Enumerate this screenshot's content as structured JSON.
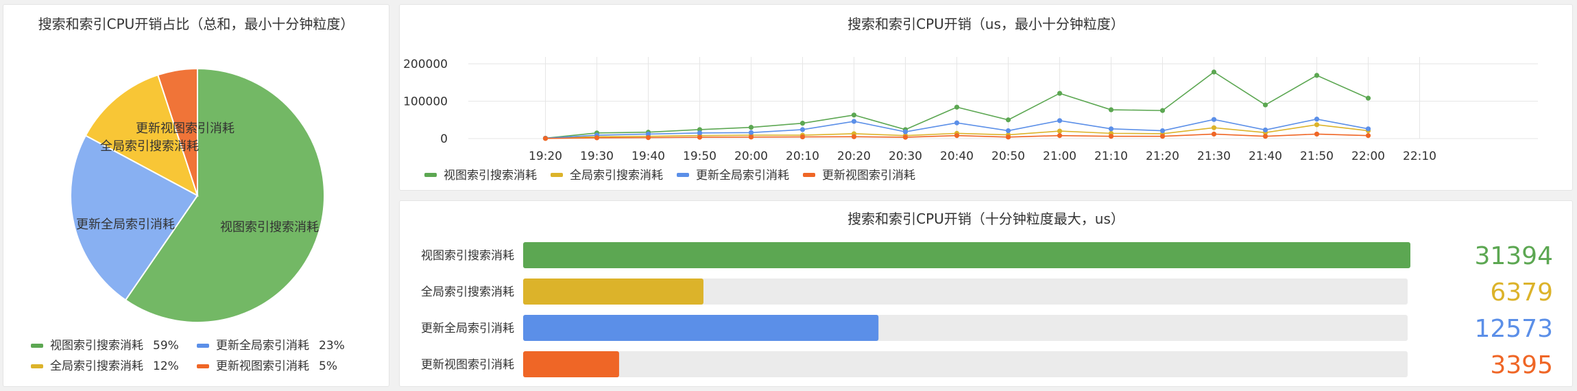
{
  "colors": {
    "green": "#5ca752",
    "yellow": "#dcb32a",
    "blue": "#5b8fe8",
    "orange": "#ef6626",
    "pie_green": "#73b865",
    "pie_blue": "#88b0f2",
    "pie_yellow": "#f8c636",
    "pie_orange": "#f07438",
    "track": "#ebebeb",
    "grid": "#e6e6e6"
  },
  "pie_panel": {
    "title": "搜索和索引CPU开销占比（总和，最小十分钟粒度）"
  },
  "line_panel": {
    "title": "搜索和索引CPU开销（us，最小十分钟粒度）"
  },
  "bar_panel": {
    "title": "搜索和索引CPU开销（十分钟粒度最大，us）"
  },
  "chart_data": [
    {
      "type": "pie",
      "title": "搜索和索引CPU开销占比（总和，最小十分钟粒度）",
      "legend_position": "bottom",
      "slices": [
        {
          "name": "视图索引搜索消耗",
          "value": 59,
          "pct_label": "59%"
        },
        {
          "name": "更新全局索引消耗",
          "value": 23,
          "pct_label": "23%"
        },
        {
          "name": "全局索引搜索消耗",
          "value": 12,
          "pct_label": "12%"
        },
        {
          "name": "更新视图索引消耗",
          "value": 5,
          "pct_label": "5%"
        }
      ]
    },
    {
      "type": "line",
      "title": "搜索和索引CPU开销（us，最小十分钟粒度）",
      "x_ticks": [
        "19:20",
        "19:30",
        "19:40",
        "19:50",
        "20:00",
        "20:10",
        "20:20",
        "20:30",
        "20:40",
        "20:50",
        "21:00",
        "21:10",
        "21:20",
        "21:30",
        "21:40",
        "21:50",
        "22:00",
        "22:10"
      ],
      "xlim": [
        -1.5,
        19.3
      ],
      "y_ticks": [
        "0",
        "100000",
        "200000"
      ],
      "ylim": [
        0,
        200000
      ],
      "grid": true,
      "legend_position": "bottom-left",
      "series": [
        {
          "name": "视图索引搜索消耗",
          "values": [
            1000,
            15000,
            17000,
            24000,
            30000,
            41000,
            63000,
            24000,
            84000,
            50000,
            121000,
            77000,
            75000,
            178000,
            90000,
            169000,
            108000
          ]
        },
        {
          "name": "全局索引搜索消耗",
          "values": [
            500,
            5000,
            6000,
            8000,
            9000,
            9000,
            13000,
            8000,
            14000,
            10000,
            20000,
            14000,
            13000,
            29000,
            16000,
            37000,
            21000
          ]
        },
        {
          "name": "更新全局索引消耗",
          "values": [
            800,
            9000,
            12000,
            15000,
            16000,
            24000,
            46000,
            18000,
            42000,
            21000,
            48000,
            26000,
            21000,
            51000,
            23000,
            52000,
            26000
          ]
        },
        {
          "name": "更新视图索引消耗",
          "values": [
            300,
            2000,
            2500,
            3500,
            4000,
            4500,
            5000,
            3500,
            8000,
            4000,
            8000,
            6000,
            6000,
            12000,
            6000,
            12000,
            8000
          ]
        }
      ]
    },
    {
      "type": "bar",
      "orientation": "horizontal",
      "title": "搜索和索引CPU开销（十分钟粒度最大，us）",
      "categories": [
        "视图索引搜索消耗",
        "全局索引搜索消耗",
        "更新全局索引消耗",
        "更新视图索引消耗"
      ],
      "values": [
        31394,
        6379,
        12573,
        3395
      ],
      "value_labels": [
        "31394",
        "6379",
        "12573",
        "3395"
      ],
      "xlim": [
        0,
        31394
      ]
    }
  ]
}
